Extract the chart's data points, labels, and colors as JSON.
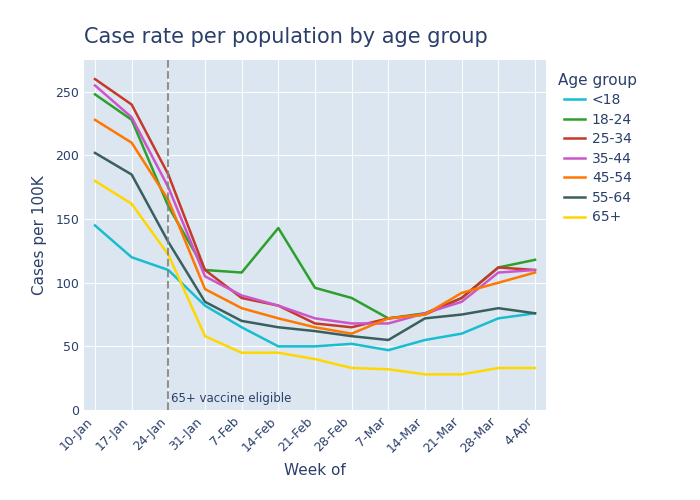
{
  "title": "Case rate per population by age group",
  "xlabel": "Week of",
  "ylabel": "Cases per 100K",
  "legend_title": "Age group",
  "x_labels": [
    "10-Jan",
    "17-Jan",
    "24-Jan",
    "31-Jan",
    "7-Feb",
    "14-Feb",
    "21-Feb",
    "28-Feb",
    "7-Mar",
    "14-Mar",
    "21-Mar",
    "28-Mar",
    "4-Apr"
  ],
  "dashed_line_x": 2,
  "dashed_line_label": "65+ vaccine eligible",
  "series": [
    {
      "label": "<18",
      "color": "#17BECF",
      "values": [
        145,
        120,
        110,
        82,
        65,
        50,
        50,
        52,
        47,
        55,
        60,
        72,
        76
      ]
    },
    {
      "label": "18-24",
      "color": "#2CA02C",
      "values": [
        248,
        228,
        160,
        110,
        108,
        143,
        96,
        88,
        72,
        76,
        88,
        112,
        118
      ]
    },
    {
      "label": "25-34",
      "color": "#C5392A",
      "values": [
        260,
        240,
        185,
        110,
        88,
        82,
        68,
        65,
        72,
        75,
        88,
        112,
        110
      ]
    },
    {
      "label": "35-44",
      "color": "#CC55CC",
      "values": [
        255,
        230,
        175,
        105,
        90,
        82,
        72,
        68,
        68,
        76,
        85,
        108,
        110
      ]
    },
    {
      "label": "45-54",
      "color": "#FF7700",
      "values": [
        228,
        210,
        165,
        95,
        80,
        72,
        65,
        60,
        72,
        75,
        92,
        100,
        108
      ]
    },
    {
      "label": "55-64",
      "color": "#3A5F5F",
      "values": [
        202,
        185,
        132,
        85,
        70,
        65,
        62,
        58,
        55,
        72,
        75,
        80,
        76
      ]
    },
    {
      "label": "65+",
      "color": "#FFD700",
      "values": [
        180,
        162,
        122,
        58,
        45,
        45,
        40,
        33,
        32,
        28,
        28,
        33,
        33
      ]
    }
  ],
  "ylim": [
    0,
    275
  ],
  "yticks": [
    0,
    50,
    100,
    150,
    200,
    250
  ],
  "figure_bg": "#FFFFFF",
  "plot_bg_color": "#DCE6F0",
  "title_color": "#2B3F6B",
  "axis_label_color": "#2B3F6B",
  "tick_color": "#2B3F6B",
  "legend_title_color": "#2B3F6B",
  "legend_text_color": "#2B3F6B",
  "title_fontsize": 15,
  "axis_label_fontsize": 11,
  "tick_fontsize": 9,
  "legend_fontsize": 10,
  "legend_title_fontsize": 11
}
